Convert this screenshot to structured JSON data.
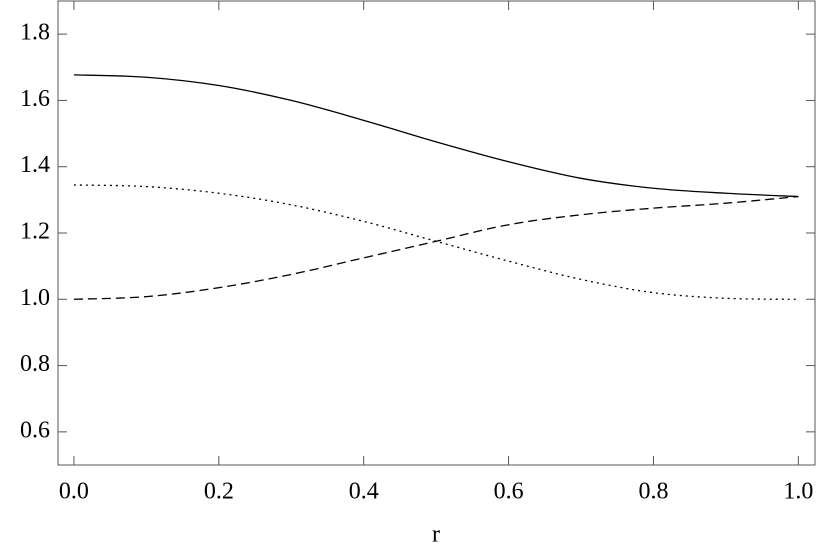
{
  "chart_data": {
    "type": "line",
    "xlabel": "r",
    "x": [
      0,
      0.1,
      0.2,
      0.3,
      0.4,
      0.5,
      0.6,
      0.7,
      0.8,
      0.9,
      1.0
    ],
    "series": [
      {
        "color": "#000000",
        "dash": "solid",
        "values": [
          1.677,
          1.67,
          1.645,
          1.6,
          1.54,
          1.475,
          1.415,
          1.365,
          1.335,
          1.32,
          1.31
        ]
      },
      {
        "color": "#000000",
        "dash": "dashed",
        "values": [
          1.0,
          1.008,
          1.035,
          1.075,
          1.125,
          1.175,
          1.225,
          1.255,
          1.275,
          1.29,
          1.31
        ]
      },
      {
        "color": "#000000",
        "dash": "dotted",
        "values": [
          1.345,
          1.34,
          1.32,
          1.285,
          1.235,
          1.175,
          1.115,
          1.06,
          1.02,
          1.003,
          1.0
        ]
      }
    ],
    "xlim": [
      -0.022,
      1.023
    ],
    "ylim": [
      0.5,
      1.9
    ],
    "xticks": [
      {
        "value": 0,
        "label": "0.0"
      },
      0.2,
      0.4,
      0.6,
      0.8,
      {
        "value": 1,
        "label": "1.0"
      }
    ],
    "yticks": [
      0.6,
      0.8,
      {
        "value": 1,
        "label": "1.0"
      },
      1.2,
      1.4,
      1.6,
      1.8
    ],
    "grid": false
  }
}
